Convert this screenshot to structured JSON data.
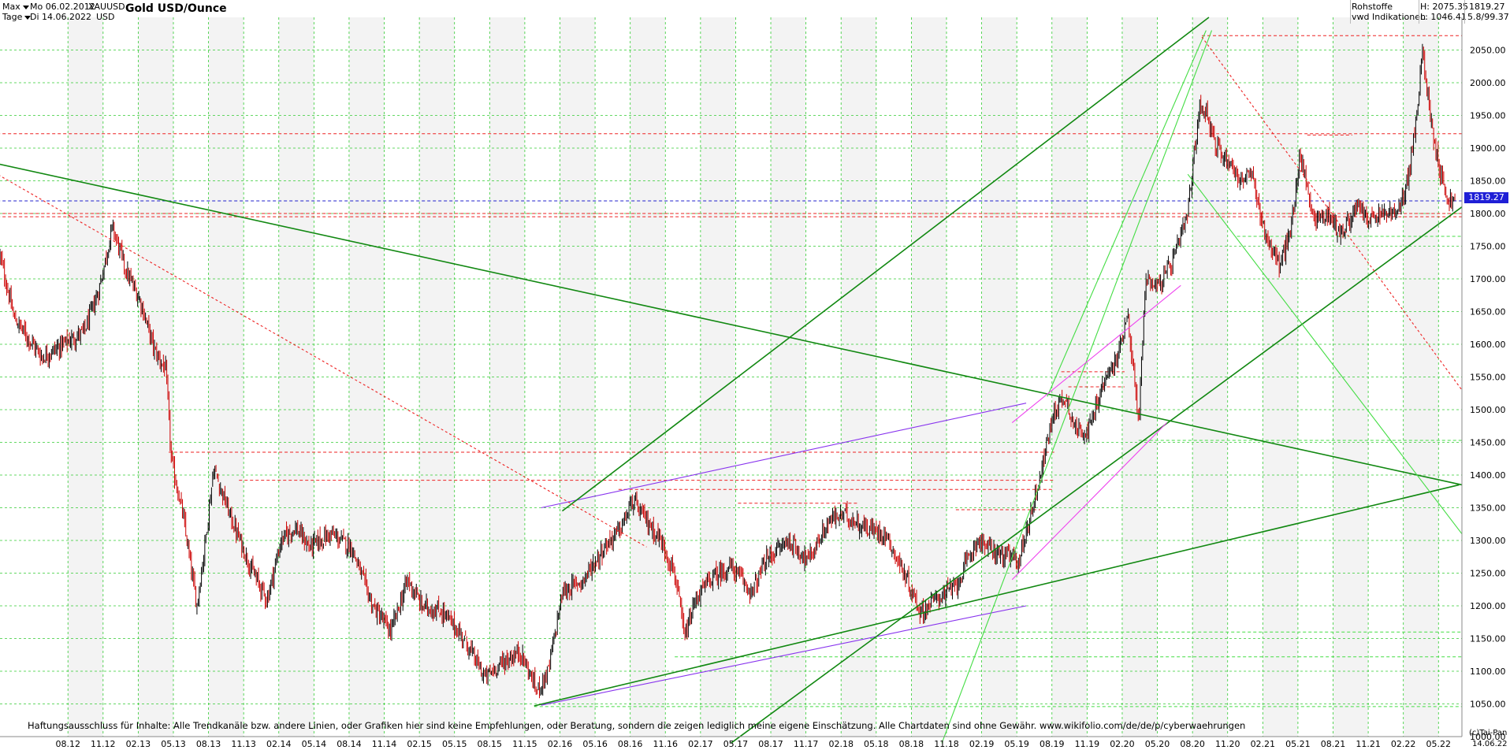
{
  "header": {
    "range_label": "Max",
    "interval_label": "Tage",
    "date_from": "Mo 06.02.2012",
    "date_to": "Di 14.06.2022",
    "symbol": "XAUUSD",
    "currency": "USD",
    "title": "Gold USD/Ounce",
    "category": "Rohstoffe",
    "source": "vwd Indikationen",
    "high_label": "H: 2075.35",
    "low_label": "L: 1046.41",
    "last_value": "1819.27",
    "change_value": "5.8/99.37"
  },
  "current_price": "1819.27",
  "disclaimer": "Haftungsausschluss für Inhalte: Alle Trendkanäle bzw. andere Linien, oder Grafiken hier sind keine Empfehlungen, oder Beratung, sondern die zeigen lediglich meine eigene Einschätzung. Alle Chartdaten sind ohne Gewähr.  www.wikifolio.com/de/de/p/cyberwaehrungen",
  "copyright": "(c)Tai-Pan",
  "end_date_label": "14.06.22",
  "colors": {
    "candle_up": "#000000",
    "candle_down": "#cc0000",
    "grid": "#33cc33",
    "trend_green": "#118811",
    "trend_light_green": "#44dd44",
    "trend_violet": "#8833ee",
    "trend_magenta": "#ee44ee",
    "resistance_red": "#ee2222",
    "price_line": "#2222cc"
  },
  "chart_data": {
    "type": "line",
    "title": "Gold USD/Ounce",
    "xlabel": "",
    "ylabel": "",
    "ylim": [
      1000,
      2100
    ],
    "y_ticks": [
      "1000.00",
      "1050.00",
      "1100.00",
      "1150.00",
      "1200.00",
      "1250.00",
      "1300.00",
      "1350.00",
      "1400.00",
      "1450.00",
      "1500.00",
      "1550.00",
      "1600.00",
      "1650.00",
      "1700.00",
      "1750.00",
      "1800.00",
      "1850.00",
      "1900.00",
      "1950.00",
      "2000.00",
      "2050.00"
    ],
    "x_ticks": [
      "08.12",
      "11.12",
      "02.13",
      "05.13",
      "08.13",
      "11.13",
      "02.14",
      "05.14",
      "08.14",
      "11.14",
      "02.15",
      "05.15",
      "08.15",
      "11.15",
      "02.16",
      "05.16",
      "08.16",
      "11.16",
      "02.17",
      "05.17",
      "08.17",
      "11.17",
      "02.18",
      "05.18",
      "08.18",
      "11.18",
      "02.19",
      "05.19",
      "08.19",
      "11.19",
      "02.20",
      "05.20",
      "08.20",
      "11.20",
      "02.21",
      "05.21",
      "08.21",
      "11.21",
      "02.22",
      "05.22"
    ],
    "grid": true,
    "price_series": {
      "name": "XAUUSD",
      "x": [
        "2012.10",
        "2012.20",
        "2012.40",
        "2012.55",
        "2012.70",
        "2012.80",
        "2012.90",
        "2013.00",
        "2013.10",
        "2013.20",
        "2013.28",
        "2013.32",
        "2013.40",
        "2013.50",
        "2013.55",
        "2013.62",
        "2013.75",
        "2013.90",
        "2014.00",
        "2014.10",
        "2014.20",
        "2014.30",
        "2014.45",
        "2014.60",
        "2014.75",
        "2014.88",
        "2015.00",
        "2015.10",
        "2015.25",
        "2015.40",
        "2015.55",
        "2015.65",
        "2015.80",
        "2015.92",
        "2016.00",
        "2016.10",
        "2016.25",
        "2016.40",
        "2016.52",
        "2016.60",
        "2016.70",
        "2016.80",
        "2016.90",
        "2016.97",
        "2017.05",
        "2017.15",
        "2017.30",
        "2017.45",
        "2017.55",
        "2017.70",
        "2017.85",
        "2018.00",
        "2018.10",
        "2018.25",
        "2018.40",
        "2018.55",
        "2018.65",
        "2018.75",
        "2018.90",
        "2019.05",
        "2019.20",
        "2019.35",
        "2019.50",
        "2019.60",
        "2019.68",
        "2019.75",
        "2019.85",
        "2019.95",
        "2020.05",
        "2020.12",
        "2020.20",
        "2020.25",
        "2020.35",
        "2020.45",
        "2020.55",
        "2020.63",
        "2020.68",
        "2020.75",
        "2020.85",
        "2020.92",
        "2021.00",
        "2021.10",
        "2021.20",
        "2021.28",
        "2021.35",
        "2021.45",
        "2021.55",
        "2021.60",
        "2021.65",
        "2021.75",
        "2021.85",
        "2021.95",
        "2022.05",
        "2022.12",
        "2022.18",
        "2022.22",
        "2022.28",
        "2022.35",
        "2022.40",
        "2022.45"
      ],
      "close": [
        1735,
        1640,
        1580,
        1600,
        1620,
        1680,
        1780,
        1710,
        1665,
        1590,
        1560,
        1420,
        1340,
        1200,
        1280,
        1410,
        1330,
        1250,
        1210,
        1300,
        1320,
        1290,
        1310,
        1290,
        1200,
        1160,
        1240,
        1200,
        1190,
        1150,
        1090,
        1110,
        1130,
        1070,
        1100,
        1220,
        1240,
        1290,
        1320,
        1360,
        1330,
        1300,
        1250,
        1150,
        1210,
        1240,
        1260,
        1220,
        1270,
        1300,
        1270,
        1330,
        1340,
        1320,
        1310,
        1240,
        1190,
        1210,
        1230,
        1300,
        1280,
        1270,
        1400,
        1500,
        1520,
        1470,
        1470,
        1540,
        1580,
        1650,
        1480,
        1700,
        1690,
        1730,
        1800,
        1960,
        1960,
        1900,
        1880,
        1850,
        1860,
        1770,
        1720,
        1770,
        1890,
        1790,
        1800,
        1780,
        1770,
        1810,
        1790,
        1800,
        1800,
        1860,
        1950,
        2050,
        1940,
        1860,
        1820,
        1819
      ]
    },
    "trend_lines": [
      {
        "color_key": "trend_green",
        "from": [
          "2012.00",
          1880
        ],
        "to": [
          "2022.50",
          1385
        ]
      },
      {
        "color_key": "trend_green",
        "from": [
          "2015.90",
          1047
        ],
        "to": [
          "2022.48",
          1385
        ]
      },
      {
        "color_key": "trend_violet",
        "from": [
          "2015.95",
          1048
        ],
        "to": [
          "2019.40",
          1200
        ]
      },
      {
        "color_key": "trend_violet",
        "from": [
          "2015.95",
          1350
        ],
        "to": [
          "2019.40",
          1510
        ]
      },
      {
        "color_key": "trend_green",
        "from": [
          "2016.10",
          1345
        ],
        "to": [
          "2020.70",
          2100
        ]
      },
      {
        "color_key": "trend_green",
        "from": [
          "2017.30",
          990
        ],
        "to": [
          "2022.50",
          1810
        ]
      },
      {
        "color_key": "trend_light_green",
        "from": [
          "2018.80",
          990
        ],
        "to": [
          "2020.72",
          2080
        ]
      },
      {
        "color_key": "trend_light_green",
        "from": [
          "2019.55",
          1520
        ],
        "to": [
          "2020.68",
          2080
        ]
      },
      {
        "color_key": "trend_light_green",
        "from": [
          "2020.55",
          1860
        ],
        "to": [
          "2022.50",
          1310
        ]
      },
      {
        "color_key": "trend_magenta",
        "from": [
          "2019.30",
          1240
        ],
        "to": [
          "2020.40",
          1480
        ]
      },
      {
        "color_key": "trend_magenta",
        "from": [
          "2019.30",
          1480
        ],
        "to": [
          "2020.50",
          1690
        ]
      },
      {
        "color_key": "resistance_red",
        "from": [
          "2012.00",
          1870
        ],
        "to": [
          "2016.70",
          1290
        ]
      },
      {
        "color_key": "resistance_red",
        "from": [
          "2020.65",
          2070
        ],
        "to": [
          "2022.50",
          1530
        ]
      }
    ],
    "horizontal_levels": [
      {
        "value": 2072,
        "color_key": "resistance_red",
        "from": "2020.65"
      },
      {
        "value": 1922,
        "color_key": "resistance_red",
        "from": "2012.00"
      },
      {
        "value": 1800,
        "color_key": "resistance_red",
        "from": "2012.00"
      },
      {
        "value": 1795,
        "color_key": "resistance_red",
        "from": "2012.00"
      },
      {
        "value": 1819.27,
        "color_key": "price_line",
        "from": "2012.00"
      },
      {
        "value": 1765,
        "color_key": "trend_light_green",
        "from": "2020.90"
      },
      {
        "value": 1453,
        "color_key": "trend_light_green",
        "from": "2020.20"
      },
      {
        "value": 1160,
        "color_key": "trend_light_green",
        "from": "2018.70"
      },
      {
        "value": 1122,
        "color_key": "trend_light_green",
        "from": "2016.90"
      },
      {
        "value": 1046,
        "color_key": "trend_light_green",
        "from": "2015.90"
      },
      {
        "value": 1435,
        "color_key": "resistance_red",
        "from": "2013.30",
        "to": "2019.60"
      },
      {
        "value": 1392,
        "color_key": "resistance_red",
        "from": "2013.80",
        "to": "2019.60"
      },
      {
        "value": 1378,
        "color_key": "resistance_red",
        "from": "2016.50",
        "to": "2019.60"
      },
      {
        "value": 1357,
        "color_key": "resistance_red",
        "from": "2017.35",
        "to": "2018.20"
      },
      {
        "value": 1347,
        "color_key": "resistance_red",
        "from": "2018.90",
        "to": "2019.50"
      },
      {
        "value": 1558,
        "color_key": "resistance_red",
        "from": "2019.65",
        "to": "2020.10"
      },
      {
        "value": 1535,
        "color_key": "resistance_red",
        "from": "2019.70",
        "to": "2020.10"
      },
      {
        "value": 1920,
        "color_key": "resistance_red",
        "from": "2021.40",
        "to": "2021.72"
      }
    ]
  }
}
